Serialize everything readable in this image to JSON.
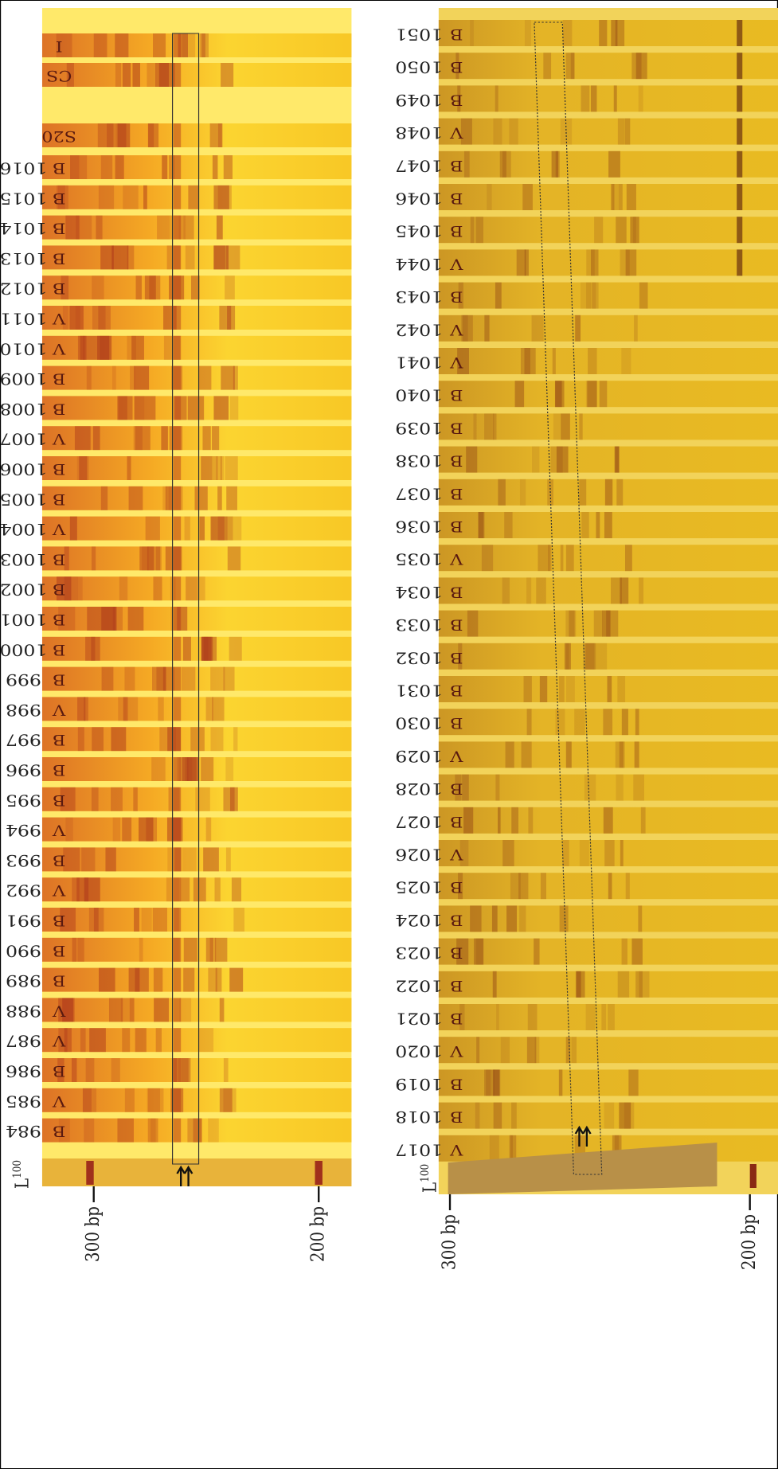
{
  "left_panel": {
    "lanes": [
      {
        "group": "I"
      },
      {
        "group": "CS"
      },
      {
        "group": "S20"
      },
      {
        "number": "1016",
        "group": "B"
      },
      {
        "number": "1015",
        "group": "B"
      },
      {
        "number": "1014",
        "group": "B"
      },
      {
        "number": "1013",
        "group": "B"
      },
      {
        "number": "1012",
        "group": "B"
      },
      {
        "number": "1011",
        "group": "V"
      },
      {
        "number": "1010",
        "group": "V"
      },
      {
        "number": "1009",
        "group": "B"
      },
      {
        "number": "1008",
        "group": "B"
      },
      {
        "number": "1007",
        "group": "V"
      },
      {
        "number": "1006",
        "group": "B"
      },
      {
        "number": "1005",
        "group": "B"
      },
      {
        "number": "1004",
        "group": "V"
      },
      {
        "number": "1003",
        "group": "B"
      },
      {
        "number": "1002",
        "group": "B"
      },
      {
        "number": "1001",
        "group": "B"
      },
      {
        "number": "1000",
        "group": "B"
      },
      {
        "number": "999",
        "group": "B"
      },
      {
        "number": "998",
        "group": "V"
      },
      {
        "number": "997",
        "group": "B"
      },
      {
        "number": "996",
        "group": "B"
      },
      {
        "number": "995",
        "group": "B"
      },
      {
        "number": "994",
        "group": "V"
      },
      {
        "number": "993",
        "group": "B"
      },
      {
        "number": "992",
        "group": "V"
      },
      {
        "number": "991",
        "group": "B"
      },
      {
        "number": "990",
        "group": "B"
      },
      {
        "number": "989",
        "group": "B"
      },
      {
        "number": "988",
        "group": "V"
      },
      {
        "number": "987",
        "group": "V"
      },
      {
        "number": "986",
        "group": "B"
      },
      {
        "number": "985",
        "group": "V"
      },
      {
        "number": "984",
        "group": "B"
      }
    ],
    "ladder": {
      "label": "L",
      "superscript": "100"
    },
    "marker_300": "300 bp",
    "marker_200": "200 bp"
  },
  "right_panel": {
    "lanes": [
      {
        "number": "1051",
        "group": "B"
      },
      {
        "number": "1050",
        "group": "B"
      },
      {
        "number": "1049",
        "group": "B"
      },
      {
        "number": "1048",
        "group": "V"
      },
      {
        "number": "1047",
        "group": "B"
      },
      {
        "number": "1046",
        "group": "B"
      },
      {
        "number": "1045",
        "group": "B"
      },
      {
        "number": "1044",
        "group": "V"
      },
      {
        "number": "1043",
        "group": "B"
      },
      {
        "number": "1042",
        "group": "V"
      },
      {
        "number": "1041",
        "group": "V"
      },
      {
        "number": "1040",
        "group": "B"
      },
      {
        "number": "1039",
        "group": "B"
      },
      {
        "number": "1038",
        "group": "B"
      },
      {
        "number": "1037",
        "group": "B"
      },
      {
        "number": "1036",
        "group": "B"
      },
      {
        "number": "1035",
        "group": "V"
      },
      {
        "number": "1034",
        "group": "B"
      },
      {
        "number": "1033",
        "group": "B"
      },
      {
        "number": "1032",
        "group": "B"
      },
      {
        "number": "1031",
        "group": "B"
      },
      {
        "number": "1030",
        "group": "B"
      },
      {
        "number": "1029",
        "group": "V"
      },
      {
        "number": "1028",
        "group": "B"
      },
      {
        "number": "1027",
        "group": "B"
      },
      {
        "number": "1026",
        "group": "V"
      },
      {
        "number": "1025",
        "group": "B"
      },
      {
        "number": "1024",
        "group": "B"
      },
      {
        "number": "1023",
        "group": "B"
      },
      {
        "number": "1022",
        "group": "B"
      },
      {
        "number": "1021",
        "group": "B"
      },
      {
        "number": "1020",
        "group": "V"
      },
      {
        "number": "1019",
        "group": "B"
      },
      {
        "number": "1018",
        "group": "B"
      },
      {
        "number": "1017",
        "group": "V"
      }
    ],
    "ladder": {
      "label": "L",
      "superscript": "100"
    },
    "marker_300": "300 bp",
    "marker_200": "200 bp"
  }
}
